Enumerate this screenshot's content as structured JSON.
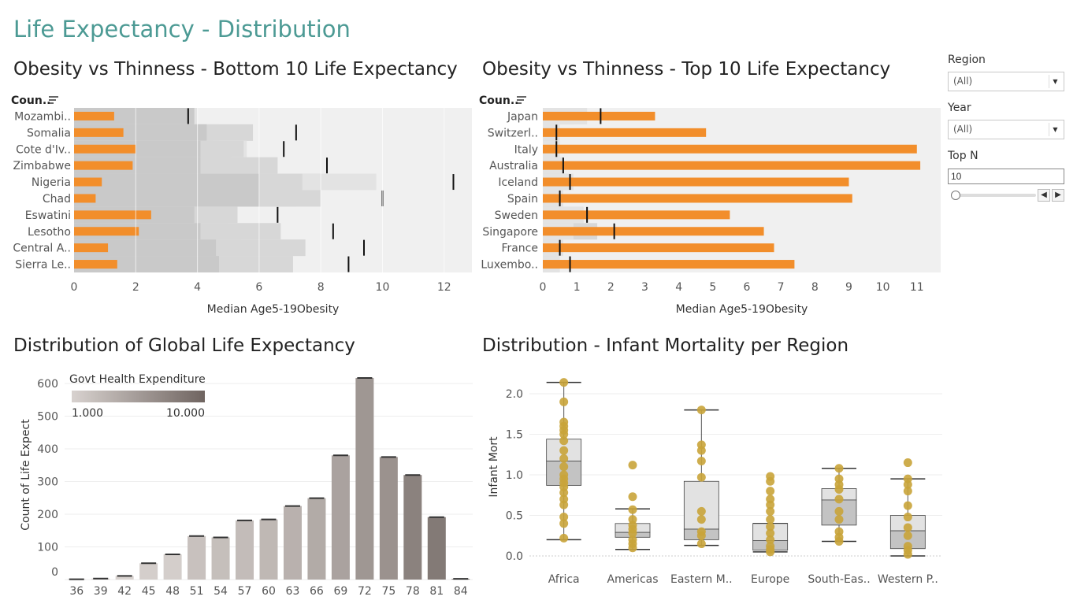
{
  "dashboard": {
    "title": "Life Expectancy - Distribution"
  },
  "filters": {
    "region": {
      "label": "Region",
      "value": "(All)"
    },
    "year": {
      "label": "Year",
      "value": "(All)"
    },
    "top_n": {
      "label": "Top N",
      "value": "10",
      "slider_level": 0.0
    }
  },
  "chart_data": [
    {
      "id": "bottom10",
      "type": "bar",
      "title": "Obesity vs Thinness - Bottom 10 Life Expectancy",
      "dim_header": "Coun..",
      "xlabel": "Median Age5-19Obesity",
      "xlim": [
        0,
        12.9
      ],
      "xticks": [
        0,
        2,
        4,
        6,
        8,
        10,
        12
      ],
      "categories": [
        "Mozambi..",
        "Somalia",
        "Cote d'Iv..",
        "Zimbabwe",
        "Nigeria",
        "Chad",
        "Eswatini",
        "Lesotho",
        "Central A..",
        "Sierra Le.."
      ],
      "series": [
        {
          "name": "",
          "values": [
            1.3,
            1.6,
            2.0,
            1.9,
            0.9,
            0.7,
            2.5,
            2.1,
            1.1,
            1.4
          ]
        }
      ],
      "reference_marks": [
        3.7,
        7.2,
        6.8,
        8.2,
        12.3,
        10.0,
        6.6,
        8.4,
        9.4,
        8.9
      ],
      "band_1": [
        3.9,
        4.3,
        4.1,
        4.1,
        6.0,
        6.0,
        3.9,
        4.1,
        4.6,
        4.7
      ],
      "band_2": [
        3.0,
        5.8,
        5.5,
        6.6,
        7.4,
        8.0,
        5.3,
        6.7,
        7.5,
        7.1
      ],
      "band_3": [
        4.0,
        5.8,
        5.6,
        6.4,
        9.8,
        7.2,
        5.3,
        6.7,
        7.5,
        7.1
      ],
      "band_4": [
        2.3,
        4.7,
        4.5,
        5.1,
        8.0,
        6.2,
        4.8,
        5.0,
        5.4,
        5.3
      ]
    },
    {
      "id": "top10",
      "type": "bar",
      "title": "Obesity vs Thinness - Top 10 Life Expectancy",
      "dim_header": "Coun..",
      "xlabel": "Median Age5-19Obesity",
      "xlim": [
        0,
        11.7
      ],
      "xticks": [
        0,
        1,
        2,
        3,
        4,
        5,
        6,
        7,
        8,
        9,
        10,
        11
      ],
      "categories": [
        "Japan",
        "Switzerl..",
        "Italy",
        "Australia",
        "Iceland",
        "Spain",
        "Sweden",
        "Singapore",
        "France",
        "Luxembo.."
      ],
      "series": [
        {
          "name": "",
          "values": [
            3.3,
            4.8,
            11.0,
            11.1,
            9.0,
            9.1,
            5.5,
            6.5,
            6.8,
            7.4
          ]
        }
      ],
      "reference_marks": [
        1.7,
        0.4,
        0.4,
        0.6,
        0.8,
        0.5,
        1.3,
        2.1,
        0.5,
        0.8
      ],
      "band_1": [
        1.3,
        0.5,
        0.5,
        0.6,
        0.9,
        0.6,
        1.2,
        0.9,
        0.6,
        0.5
      ],
      "band_2": [
        0.9,
        0.4,
        0.5,
        0.5,
        0.7,
        0.5,
        0.5,
        1.6,
        0.5,
        0.4
      ]
    },
    {
      "id": "histogram",
      "type": "bar",
      "title": "Distribution of Global Life Expectancy",
      "ylabel": "Count of Life Expect",
      "ylim": [
        0,
        650
      ],
      "yticks": [
        0,
        100,
        200,
        300,
        400,
        500,
        600
      ],
      "categories": [
        "36",
        "39",
        "42",
        "45",
        "48",
        "51",
        "54",
        "57",
        "60",
        "63",
        "66",
        "69",
        "72",
        "75",
        "78",
        "81",
        "84"
      ],
      "values": [
        1,
        3,
        11,
        50,
        77,
        133,
        129,
        181,
        184,
        225,
        249,
        380,
        617,
        375,
        320,
        191,
        2
      ],
      "color_values": [
        1000,
        1000,
        1000,
        1100,
        1100,
        1500,
        1600,
        1700,
        1900,
        2200,
        2600,
        3200,
        4200,
        4700,
        7000,
        8500,
        10000
      ],
      "legend": {
        "title": "Govt Health Expenditure",
        "min_label": "1.000",
        "max_label": "10.000",
        "min": 1000,
        "max": 10000
      }
    },
    {
      "id": "boxplot",
      "type": "scatter",
      "title": "Distribution - Infant Mortality per Region",
      "ylabel": "Infant Mort",
      "ylim": [
        -0.1,
        2.25
      ],
      "yticks": [
        0.0,
        0.5,
        1.0,
        1.5,
        2.0
      ],
      "ytick_labels": [
        "0.0",
        "0.5",
        "1.0",
        "1.5",
        "2.0"
      ],
      "categories": [
        "Africa",
        "Americas",
        "Eastern M..",
        "Europe",
        "South-Eas..",
        "Western P.."
      ],
      "boxes": [
        {
          "min": 0.2,
          "q1": 0.87,
          "median": 1.17,
          "q3": 1.44,
          "max": 2.14
        },
        {
          "min": 0.08,
          "q1": 0.23,
          "median": 0.29,
          "q3": 0.4,
          "max": 0.58
        },
        {
          "min": 0.13,
          "q1": 0.2,
          "median": 0.33,
          "q3": 0.92,
          "max": 1.8
        },
        {
          "min": 0.05,
          "q1": 0.07,
          "median": 0.19,
          "q3": 0.4,
          "max": 0.4
        },
        {
          "min": 0.18,
          "q1": 0.38,
          "median": 0.69,
          "q3": 0.83,
          "max": 1.08
        },
        {
          "min": 0.0,
          "q1": 0.09,
          "median": 0.31,
          "q3": 0.5,
          "max": 0.95
        }
      ],
      "points": [
        [
          2.14,
          1.9,
          1.65,
          1.6,
          1.55,
          1.5,
          1.42,
          1.3,
          1.2,
          1.1,
          1.0,
          0.95,
          0.9,
          0.85,
          0.78,
          0.7,
          0.63,
          0.48,
          0.4,
          0.22
        ],
        [
          1.12,
          0.73,
          0.57,
          0.45,
          0.38,
          0.33,
          0.28,
          0.2,
          0.15,
          0.1
        ],
        [
          1.8,
          1.37,
          1.3,
          1.17,
          0.97,
          0.55,
          0.45,
          0.3,
          0.25,
          0.15
        ],
        [
          0.98,
          0.92,
          0.8,
          0.7,
          0.63,
          0.55,
          0.45,
          0.36,
          0.28,
          0.2,
          0.12,
          0.08,
          0.05
        ],
        [
          1.08,
          0.95,
          0.88,
          0.82,
          0.7,
          0.55,
          0.45,
          0.3,
          0.23,
          0.18
        ],
        [
          1.15,
          0.95,
          0.88,
          0.8,
          0.62,
          0.48,
          0.35,
          0.25,
          0.12,
          0.07,
          0.02
        ]
      ],
      "point_color": "#c9a43a"
    }
  ],
  "colors": {
    "bar_orange": "#f28e2b",
    "band_dark": "#c9c9c9",
    "band_mid": "#d7d7d7",
    "band_light": "#e3e3e3",
    "pane_bg": "#f0f0f0",
    "hist_low": "#d8d2cf",
    "hist_high": "#7d736f"
  }
}
